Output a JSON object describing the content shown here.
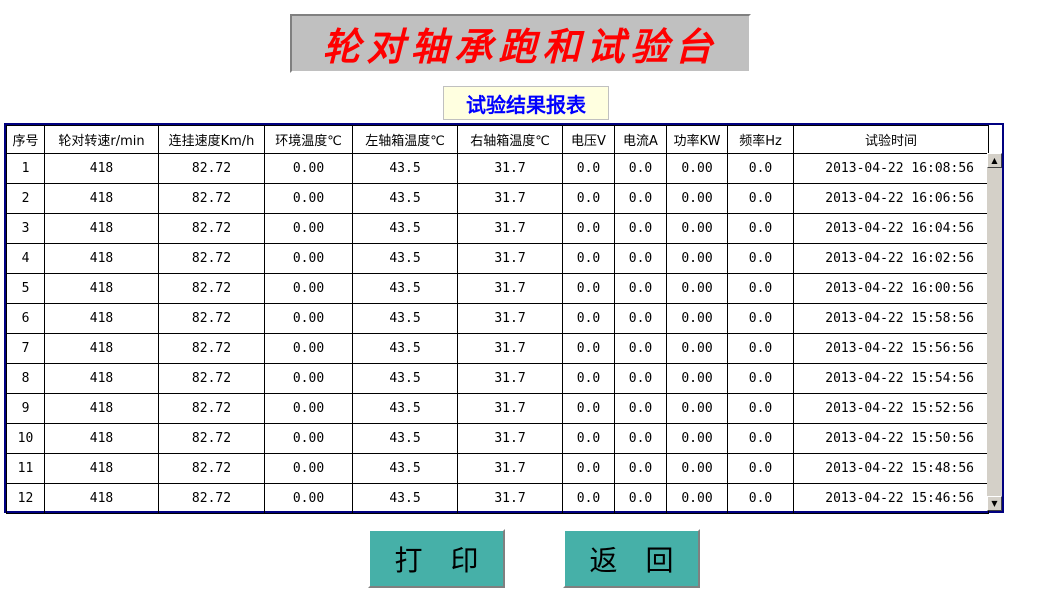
{
  "title": "轮对轴承跑和试验台",
  "subtitle": "试验结果报表",
  "colors": {
    "title": "#ff0000",
    "subtitle": "#0000ff",
    "button_bg": "#46b0a8",
    "grid_border": "#000080"
  },
  "table": {
    "headers": [
      "序号",
      "轮对转速r/min",
      "连挂速度Km/h",
      "环境温度℃",
      "左轴箱温度℃",
      "右轴箱温度℃",
      "电压V",
      "电流A",
      "功率KW",
      "频率Hz",
      "试验时间"
    ],
    "rows": [
      [
        "1",
        "418",
        "82.72",
        "0.00",
        "43.5",
        "31.7",
        "0.0",
        "0.0",
        "0.00",
        "0.0",
        "2013-04-22 16:08:56"
      ],
      [
        "2",
        "418",
        "82.72",
        "0.00",
        "43.5",
        "31.7",
        "0.0",
        "0.0",
        "0.00",
        "0.0",
        "2013-04-22 16:06:56"
      ],
      [
        "3",
        "418",
        "82.72",
        "0.00",
        "43.5",
        "31.7",
        "0.0",
        "0.0",
        "0.00",
        "0.0",
        "2013-04-22 16:04:56"
      ],
      [
        "4",
        "418",
        "82.72",
        "0.00",
        "43.5",
        "31.7",
        "0.0",
        "0.0",
        "0.00",
        "0.0",
        "2013-04-22 16:02:56"
      ],
      [
        "5",
        "418",
        "82.72",
        "0.00",
        "43.5",
        "31.7",
        "0.0",
        "0.0",
        "0.00",
        "0.0",
        "2013-04-22 16:00:56"
      ],
      [
        "6",
        "418",
        "82.72",
        "0.00",
        "43.5",
        "31.7",
        "0.0",
        "0.0",
        "0.00",
        "0.0",
        "2013-04-22 15:58:56"
      ],
      [
        "7",
        "418",
        "82.72",
        "0.00",
        "43.5",
        "31.7",
        "0.0",
        "0.0",
        "0.00",
        "0.0",
        "2013-04-22 15:56:56"
      ],
      [
        "8",
        "418",
        "82.72",
        "0.00",
        "43.5",
        "31.7",
        "0.0",
        "0.0",
        "0.00",
        "0.0",
        "2013-04-22 15:54:56"
      ],
      [
        "9",
        "418",
        "82.72",
        "0.00",
        "43.5",
        "31.7",
        "0.0",
        "0.0",
        "0.00",
        "0.0",
        "2013-04-22 15:52:56"
      ],
      [
        "10",
        "418",
        "82.72",
        "0.00",
        "43.5",
        "31.7",
        "0.0",
        "0.0",
        "0.00",
        "0.0",
        "2013-04-22 15:50:56"
      ],
      [
        "11",
        "418",
        "82.72",
        "0.00",
        "43.5",
        "31.7",
        "0.0",
        "0.0",
        "0.00",
        "0.0",
        "2013-04-22 15:48:56"
      ],
      [
        "12",
        "418",
        "82.72",
        "0.00",
        "43.5",
        "31.7",
        "0.0",
        "0.0",
        "0.00",
        "0.0",
        "2013-04-22 15:46:56"
      ]
    ]
  },
  "scrollbar": {
    "up_icon": "triangle-up",
    "down_icon": "triangle-down"
  },
  "buttons": {
    "print": "打　印",
    "back": "返　回"
  }
}
